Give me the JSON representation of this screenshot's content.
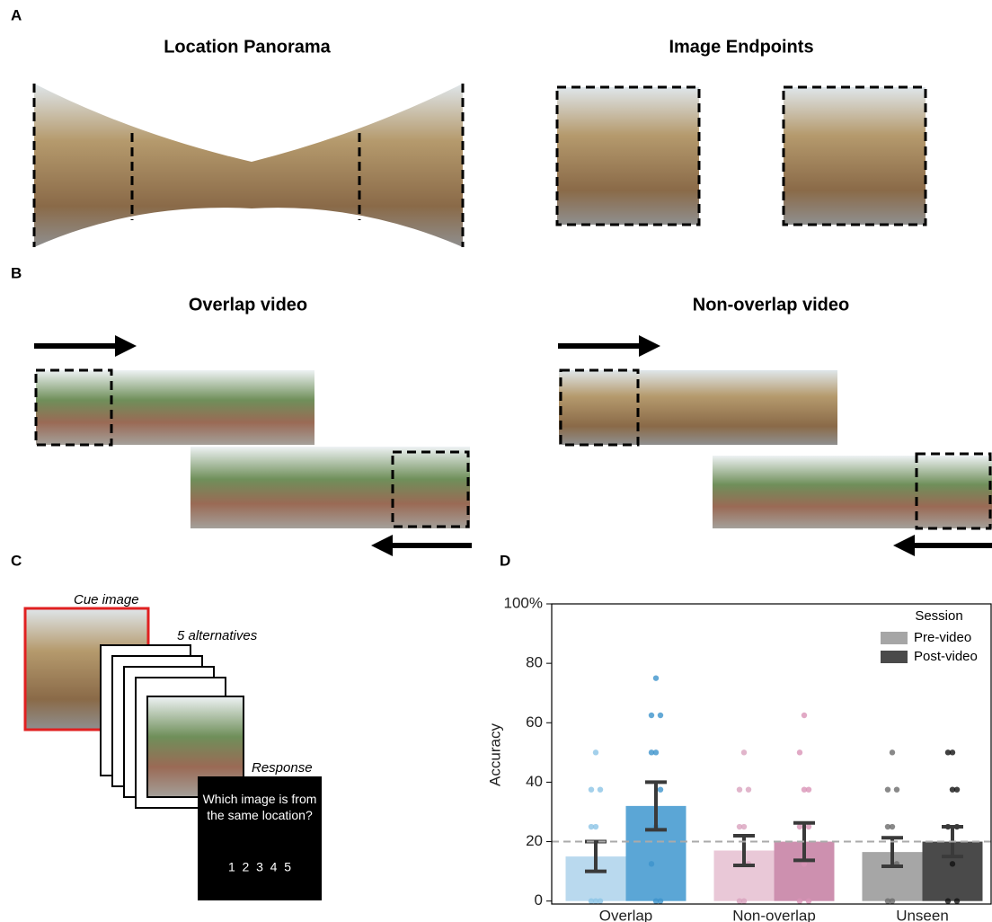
{
  "panels": [
    {
      "label": "A",
      "titles": [
        "Location Panorama",
        "Image Endpoints"
      ]
    },
    {
      "label": "B",
      "titles": [
        "Overlap video",
        "Non-overlap video"
      ]
    },
    {
      "label": "C",
      "cue": "Cue image",
      "alternatives": "5 alternatives",
      "response": "Response",
      "question": "Which image is from the same location?",
      "options": "1  2  3  4  5"
    },
    {
      "label": "D"
    }
  ],
  "chart_data": {
    "type": "bar",
    "ylabel": "Accuracy",
    "categories": [
      "Overlap",
      "Non-overlap",
      "Unseen"
    ],
    "ylim": [
      -1,
      100
    ],
    "yticks": [
      0,
      20,
      40,
      60,
      80,
      {
        "value": 100,
        "label": "100%"
      }
    ],
    "reference_line": 20,
    "legend_title": "Session",
    "legend": "top-right",
    "series": [
      {
        "name": "Pre-video",
        "color": "#a6a6a6",
        "colors": [
          "#b9d9ee",
          "#e9c8d7",
          "#a6a6a6"
        ],
        "point_colors": [
          "#8cc4e6",
          "#d9a3be",
          "#6b6b6b"
        ],
        "values": [
          15,
          17,
          16.5
        ],
        "errors": [
          5,
          5,
          4.8
        ],
        "points": [
          [
            50,
            37.5,
            37.5,
            25,
            25,
            0,
            0,
            0
          ],
          [
            50,
            37.5,
            37.5,
            25,
            25,
            12.5,
            0,
            0
          ],
          [
            50,
            37.5,
            37.5,
            25,
            25,
            12.5,
            0,
            0
          ]
        ]
      },
      {
        "name": "Post-video",
        "color": "#4a4a4a",
        "colors": [
          "#5ba6d6",
          "#cd90af",
          "#4a4a4a"
        ],
        "point_colors": [
          "#3d93cc",
          "#d993b7",
          "#111111"
        ],
        "values": [
          32,
          20,
          20
        ],
        "errors": [
          8,
          6.3,
          5
        ],
        "points": [
          [
            75,
            62.5,
            62.5,
            50,
            50,
            37.5,
            25,
            12.5,
            0,
            0
          ],
          [
            62.5,
            50,
            37.5,
            37.5,
            25,
            25,
            12.5,
            0,
            0
          ],
          [
            50,
            50,
            37.5,
            37.5,
            25,
            25,
            12.5,
            0,
            0
          ]
        ]
      }
    ]
  }
}
